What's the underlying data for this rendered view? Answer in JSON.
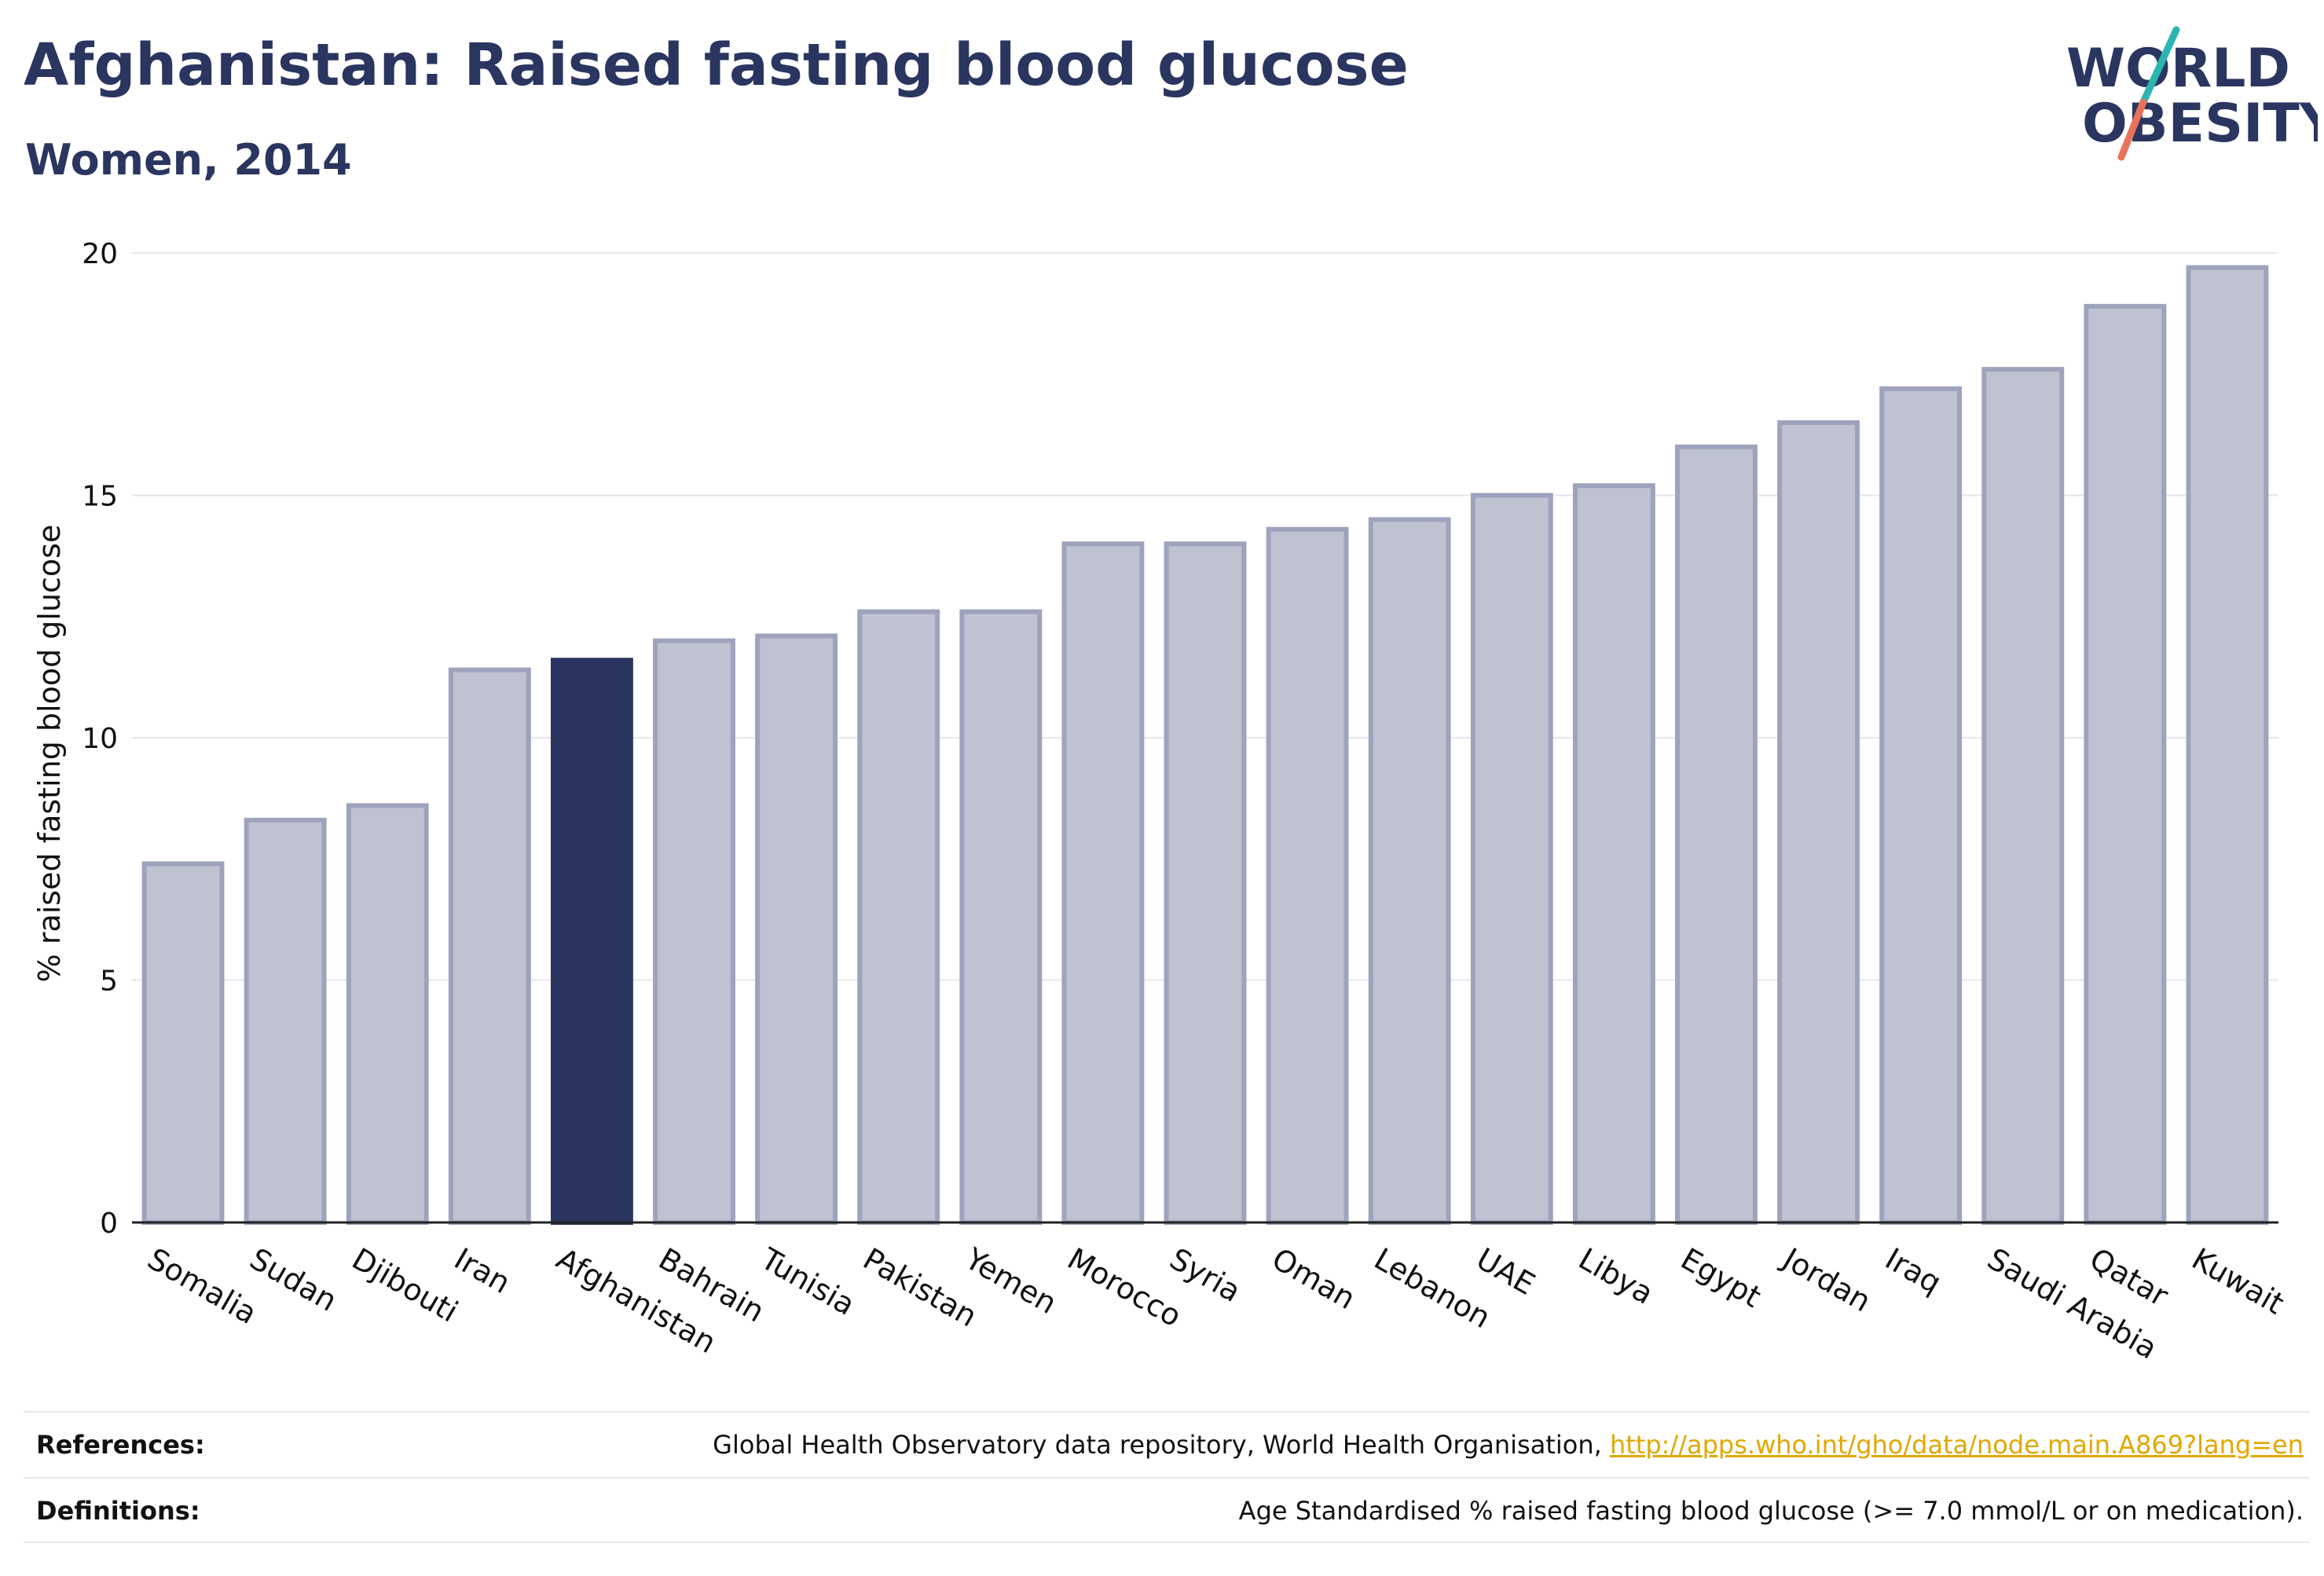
{
  "title": "Afghanistan: Raised fasting blood glucose",
  "subtitle": "Women, 2014",
  "logo": {
    "line1": "WORLD",
    "line2": "OBESITY"
  },
  "colors": {
    "highlight": "#2a3560",
    "bar_fill": "#bfc2d0",
    "bar_stroke": "#9ea3bd",
    "text": "#2a3560",
    "link": "#e0a800",
    "logo_teal": "#2bb5b0",
    "logo_coral": "#e8725a"
  },
  "chart_data": {
    "type": "bar",
    "ylabel": "% raised fasting blood glucose",
    "xlabel": "",
    "ylim": [
      0,
      20
    ],
    "yticks": [
      0,
      5,
      10,
      15,
      20
    ],
    "grid": true,
    "highlight": "Afghanistan",
    "categories": [
      "Somalia",
      "Sudan",
      "Djibouti",
      "Iran",
      "Afghanistan",
      "Bahrain",
      "Tunisia",
      "Pakistan",
      "Yemen",
      "Morocco",
      "Syria",
      "Oman",
      "Lebanon",
      "UAE",
      "Libya",
      "Egypt",
      "Jordan",
      "Iraq",
      "Saudi Arabia",
      "Qatar",
      "Kuwait"
    ],
    "values": [
      7.4,
      8.3,
      8.6,
      11.4,
      11.6,
      12.0,
      12.1,
      12.6,
      12.6,
      14.0,
      14.0,
      14.3,
      14.5,
      15.0,
      15.2,
      16.0,
      16.5,
      17.2,
      17.6,
      18.9,
      19.7
    ]
  },
  "footer": {
    "references_label": "References:",
    "references_text": "Global Health Observatory data repository, World Health Organisation, ",
    "references_link": "http://apps.who.int/gho/data/node.main.A869?lang=en",
    "definitions_label": "Definitions:",
    "definitions_text": "Age Standardised % raised fasting blood glucose (>= 7.0 mmol/L or on medication)."
  }
}
